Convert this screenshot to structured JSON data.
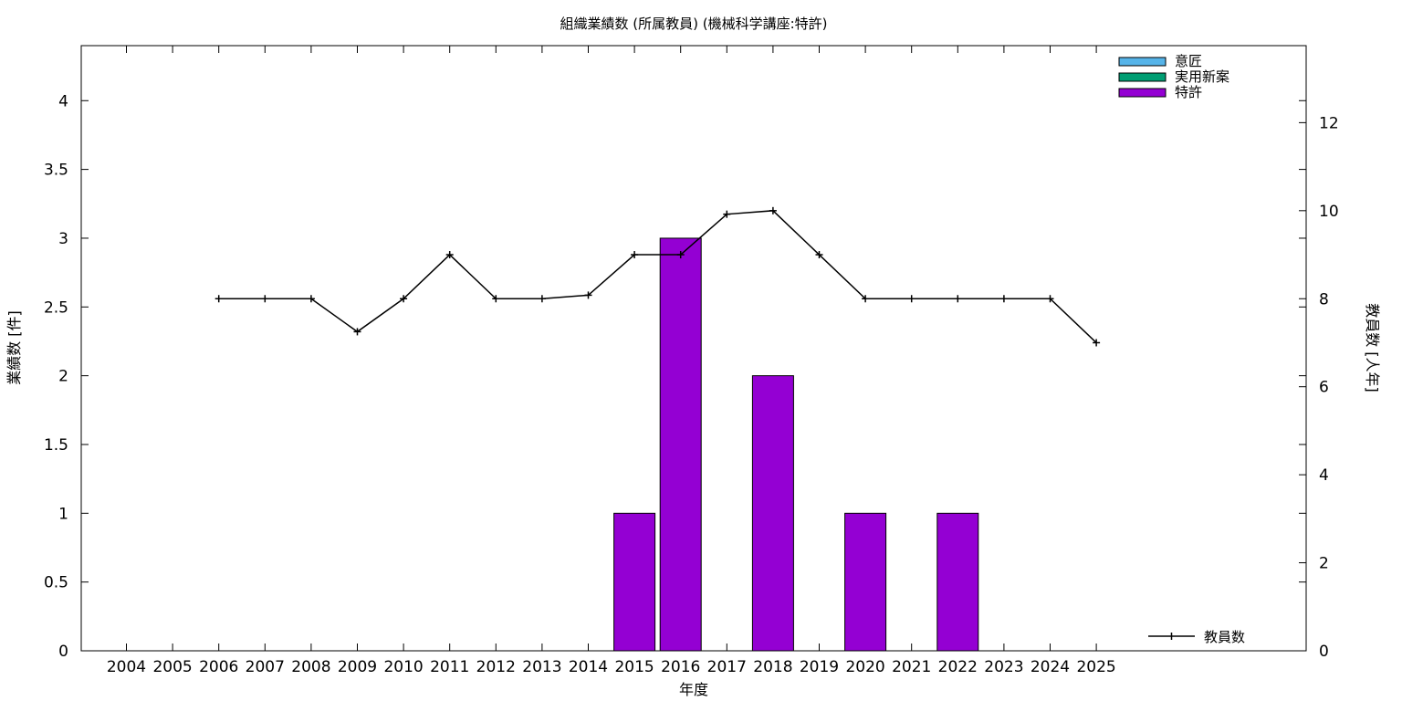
{
  "chart_data": {
    "type": "bar",
    "title": "組織業績数 (所属教員) (機械科学講座:特許)",
    "xlabel": "年度",
    "ylabel": "業績数 [件]",
    "y2label": "教員数 [人年]",
    "categories": [
      "2004",
      "2005",
      "2006",
      "2007",
      "2008",
      "2009",
      "2010",
      "2011",
      "2012",
      "2013",
      "2014",
      "2015",
      "2016",
      "2017",
      "2018",
      "2019",
      "2020",
      "2021",
      "2022",
      "2023",
      "2024",
      "2025"
    ],
    "ylim": [
      0,
      4.4
    ],
    "yticks": [
      "0",
      "0.5",
      "1",
      "1.5",
      "2",
      "2.5",
      "3",
      "3.5",
      "4"
    ],
    "y2lim": [
      0,
      13.75
    ],
    "y2ticks": [
      "0",
      "2",
      "4",
      "6",
      "8",
      "10",
      "12"
    ],
    "series": [
      {
        "name": "意匠",
        "color": "#56b4e9",
        "values": [
          0,
          0,
          0,
          0,
          0,
          0,
          0,
          0,
          0,
          0,
          0,
          0,
          0,
          0,
          0,
          0,
          0,
          0,
          0,
          0,
          0,
          0
        ]
      },
      {
        "name": "実用新案",
        "color": "#009e73",
        "values": [
          0,
          0,
          0,
          0,
          0,
          0,
          0,
          0,
          0,
          0,
          0,
          0,
          0,
          0,
          0,
          0,
          0,
          0,
          0,
          0,
          0,
          0
        ]
      },
      {
        "name": "特許",
        "color": "#9400d3",
        "values": [
          0,
          0,
          0,
          0,
          0,
          0,
          0,
          0,
          0,
          0,
          0,
          1,
          3,
          0,
          2,
          0,
          1,
          0,
          1,
          0,
          0,
          0
        ]
      }
    ],
    "line_series": {
      "name": "教員数",
      "color": "#000000",
      "x": [
        "2006",
        "2007",
        "2008",
        "2009",
        "2010",
        "2011",
        "2012",
        "2013",
        "2014",
        "2015",
        "2016",
        "2017",
        "2018",
        "2019",
        "2020",
        "2021",
        "2022",
        "2023",
        "2024",
        "2025"
      ],
      "values": [
        8,
        8,
        8,
        7.25,
        8,
        9,
        8,
        8,
        8.08,
        9,
        9,
        9.92,
        10,
        9,
        8,
        8,
        8,
        8,
        8,
        7
      ]
    },
    "legend_bars_position": "top-right",
    "legend_line_position": "bottom-right",
    "grid": false
  }
}
